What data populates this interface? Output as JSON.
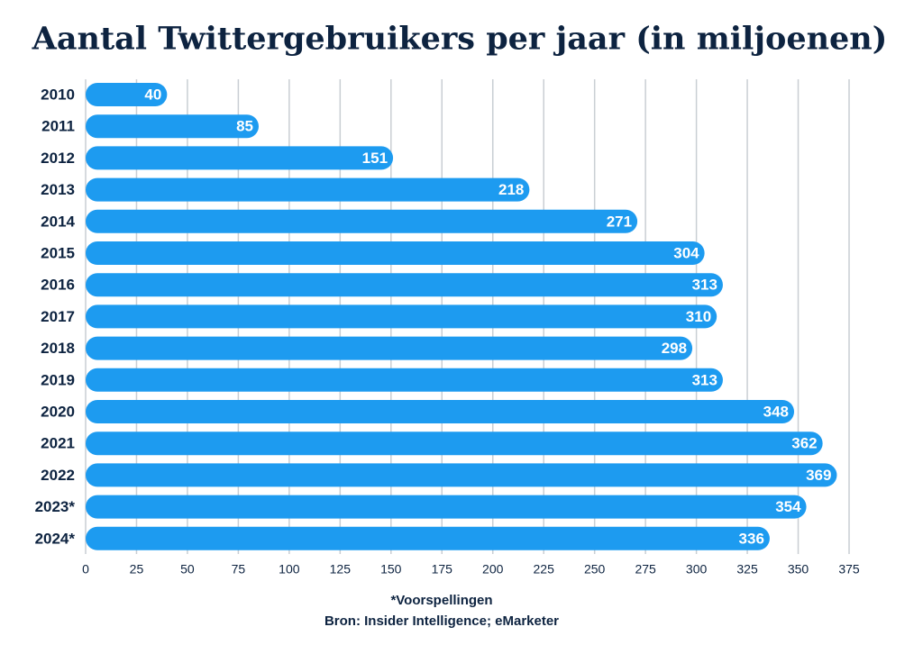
{
  "chart_data": {
    "type": "barh",
    "title": "Aantal Twittergebruikers per jaar (in miljoenen)",
    "categories": [
      "2010",
      "2011",
      "2012",
      "2013",
      "2014",
      "2015",
      "2016",
      "2017",
      "2018",
      "2019",
      "2020",
      "2021",
      "2022",
      "2023*",
      "2024*"
    ],
    "values": [
      40,
      85,
      151,
      218,
      271,
      304,
      313,
      310,
      298,
      313,
      348,
      362,
      369,
      354,
      336
    ],
    "color": "#1d9bf0",
    "xlim": [
      0,
      375
    ],
    "xticks": [
      0,
      25,
      50,
      75,
      100,
      125,
      150,
      175,
      200,
      225,
      250,
      275,
      300,
      325,
      350,
      375
    ],
    "grid": true,
    "footnote": "*Voorspellingen",
    "source": "Bron: Insider Intelligence; eMarketer"
  }
}
